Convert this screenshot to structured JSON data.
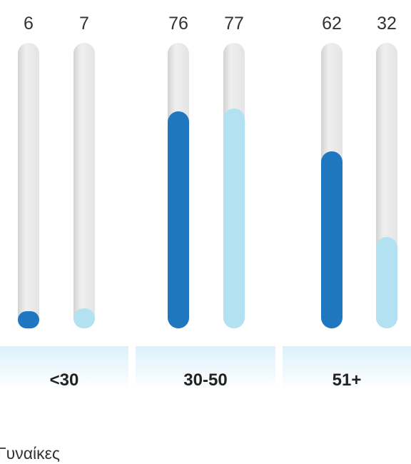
{
  "chart_data": {
    "type": "bar",
    "categories": [
      "<30",
      "30-50",
      "51+"
    ],
    "series": [
      {
        "values": [
          6,
          76,
          62
        ],
        "color": "#1f77c0"
      },
      {
        "values": [
          7,
          77,
          32
        ],
        "color": "#b2e2f2"
      }
    ],
    "ylim": [
      0,
      100
    ],
    "track_color": "#e9e9e9",
    "band_color": "#e4f3fb"
  },
  "legend": {
    "label": "Γυναίκες"
  }
}
